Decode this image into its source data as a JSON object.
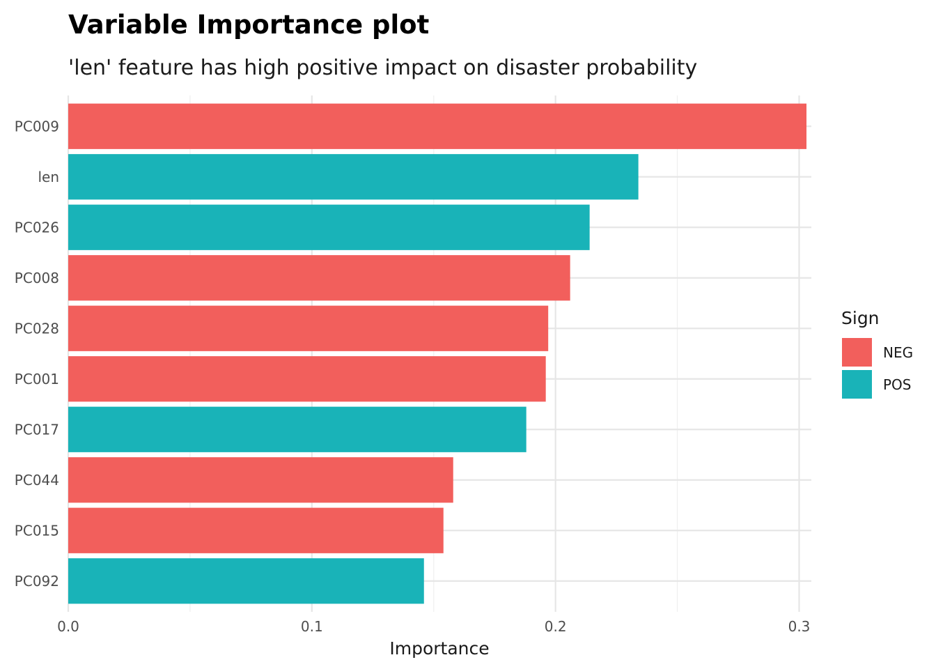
{
  "chart_data": {
    "type": "bar",
    "orientation": "horizontal",
    "title": "Variable Importance plot",
    "subtitle": "'len' feature has high positive impact on disaster probability",
    "xlabel": "Importance",
    "ylabel": "",
    "xlim": [
      0,
      0.305
    ],
    "x_ticks": [
      0.0,
      0.1,
      0.2,
      0.3
    ],
    "x_tick_labels": [
      "0.0",
      "0.1",
      "0.2",
      "0.3"
    ],
    "grid": true,
    "legend": {
      "title": "Sign",
      "position": "right",
      "entries": [
        {
          "label": "NEG",
          "color": "#F25F5C"
        },
        {
          "label": "POS",
          "color": "#19B3B8"
        }
      ]
    },
    "bars": [
      {
        "category": "PC009",
        "value": 0.303,
        "sign": "NEG"
      },
      {
        "category": "len",
        "value": 0.234,
        "sign": "POS"
      },
      {
        "category": "PC026",
        "value": 0.214,
        "sign": "POS"
      },
      {
        "category": "PC008",
        "value": 0.206,
        "sign": "NEG"
      },
      {
        "category": "PC028",
        "value": 0.197,
        "sign": "NEG"
      },
      {
        "category": "PC001",
        "value": 0.196,
        "sign": "NEG"
      },
      {
        "category": "PC017",
        "value": 0.188,
        "sign": "POS"
      },
      {
        "category": "PC044",
        "value": 0.158,
        "sign": "NEG"
      },
      {
        "category": "PC015",
        "value": 0.154,
        "sign": "NEG"
      },
      {
        "category": "PC092",
        "value": 0.146,
        "sign": "POS"
      }
    ]
  }
}
